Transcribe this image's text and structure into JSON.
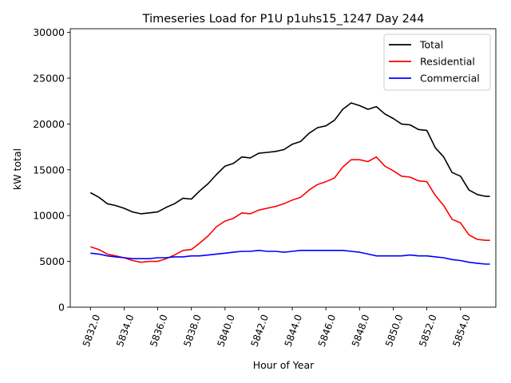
{
  "chart_data": {
    "type": "line",
    "title": "Timeseries Load for P1U p1uhs15_1247  Day 244",
    "xlabel": "Hour of Year",
    "ylabel": "kW total",
    "xlim": [
      5830.8,
      5856.1
    ],
    "ylim": [
      0,
      30400
    ],
    "xticks": [
      5832,
      5834,
      5836,
      5838,
      5840,
      5842,
      5844,
      5846,
      5848,
      5850,
      5852,
      5854
    ],
    "xtick_labels": [
      "5832.0",
      "5834.0",
      "5836.0",
      "5838.0",
      "5840.0",
      "5842.0",
      "5844.0",
      "5846.0",
      "5848.0",
      "5850.0",
      "5852.0",
      "5854.0"
    ],
    "yticks": [
      0,
      5000,
      10000,
      15000,
      20000,
      25000,
      30000
    ],
    "ytick_labels": [
      "0",
      "5000",
      "10000",
      "15000",
      "20000",
      "25000",
      "30000"
    ],
    "legend_position": "top-right",
    "x": [
      5832,
      5832.5,
      5833,
      5833.5,
      5834,
      5834.5,
      5835,
      5835.5,
      5836,
      5836.5,
      5837,
      5837.5,
      5838,
      5838.5,
      5839,
      5839.5,
      5840,
      5840.5,
      5841,
      5841.5,
      5842,
      5842.5,
      5843,
      5843.5,
      5844,
      5844.5,
      5845,
      5845.5,
      5846,
      5846.5,
      5847,
      5847.5,
      5848,
      5848.5,
      5849,
      5849.5,
      5850,
      5850.5,
      5851,
      5851.5,
      5852,
      5852.5,
      5853,
      5853.5,
      5854,
      5854.5,
      5855,
      5855.5,
      5855.75
    ],
    "series": [
      {
        "name": "Total",
        "color": "#000000",
        "values": [
          12500,
          12000,
          11300,
          11100,
          10800,
          10400,
          10200,
          10300,
          10400,
          10900,
          11300,
          11900,
          11800,
          12700,
          13500,
          14500,
          15400,
          15700,
          16400,
          16300,
          16800,
          16900,
          17000,
          17200,
          17800,
          18100,
          19000,
          19600,
          19800,
          20400,
          21600,
          22300,
          22000,
          21600,
          21900,
          21100,
          20600,
          20000,
          19900,
          19400,
          19300,
          17400,
          16400,
          14700,
          14300,
          12800,
          12300,
          12100,
          12100
        ]
      },
      {
        "name": "Residential",
        "color": "#ff0000",
        "values": [
          6600,
          6300,
          5800,
          5600,
          5400,
          5100,
          4900,
          5000,
          5000,
          5300,
          5700,
          6200,
          6300,
          7000,
          7800,
          8800,
          9400,
          9700,
          10300,
          10200,
          10600,
          10800,
          11000,
          11300,
          11700,
          12000,
          12800,
          13400,
          13700,
          14100,
          15300,
          16100,
          16100,
          15900,
          16400,
          15400,
          14900,
          14300,
          14200,
          13800,
          13700,
          12200,
          11100,
          9600,
          9200,
          7900,
          7400,
          7300,
          7300
        ]
      },
      {
        "name": "Commercial",
        "color": "#0000ff",
        "values": [
          5900,
          5800,
          5600,
          5500,
          5400,
          5300,
          5300,
          5300,
          5400,
          5400,
          5500,
          5500,
          5600,
          5600,
          5700,
          5800,
          5900,
          6000,
          6100,
          6100,
          6200,
          6100,
          6100,
          6000,
          6100,
          6200,
          6200,
          6200,
          6200,
          6200,
          6200,
          6100,
          6000,
          5800,
          5600,
          5600,
          5600,
          5600,
          5700,
          5600,
          5600,
          5500,
          5400,
          5200,
          5100,
          4900,
          4800,
          4700,
          4700
        ]
      }
    ]
  }
}
